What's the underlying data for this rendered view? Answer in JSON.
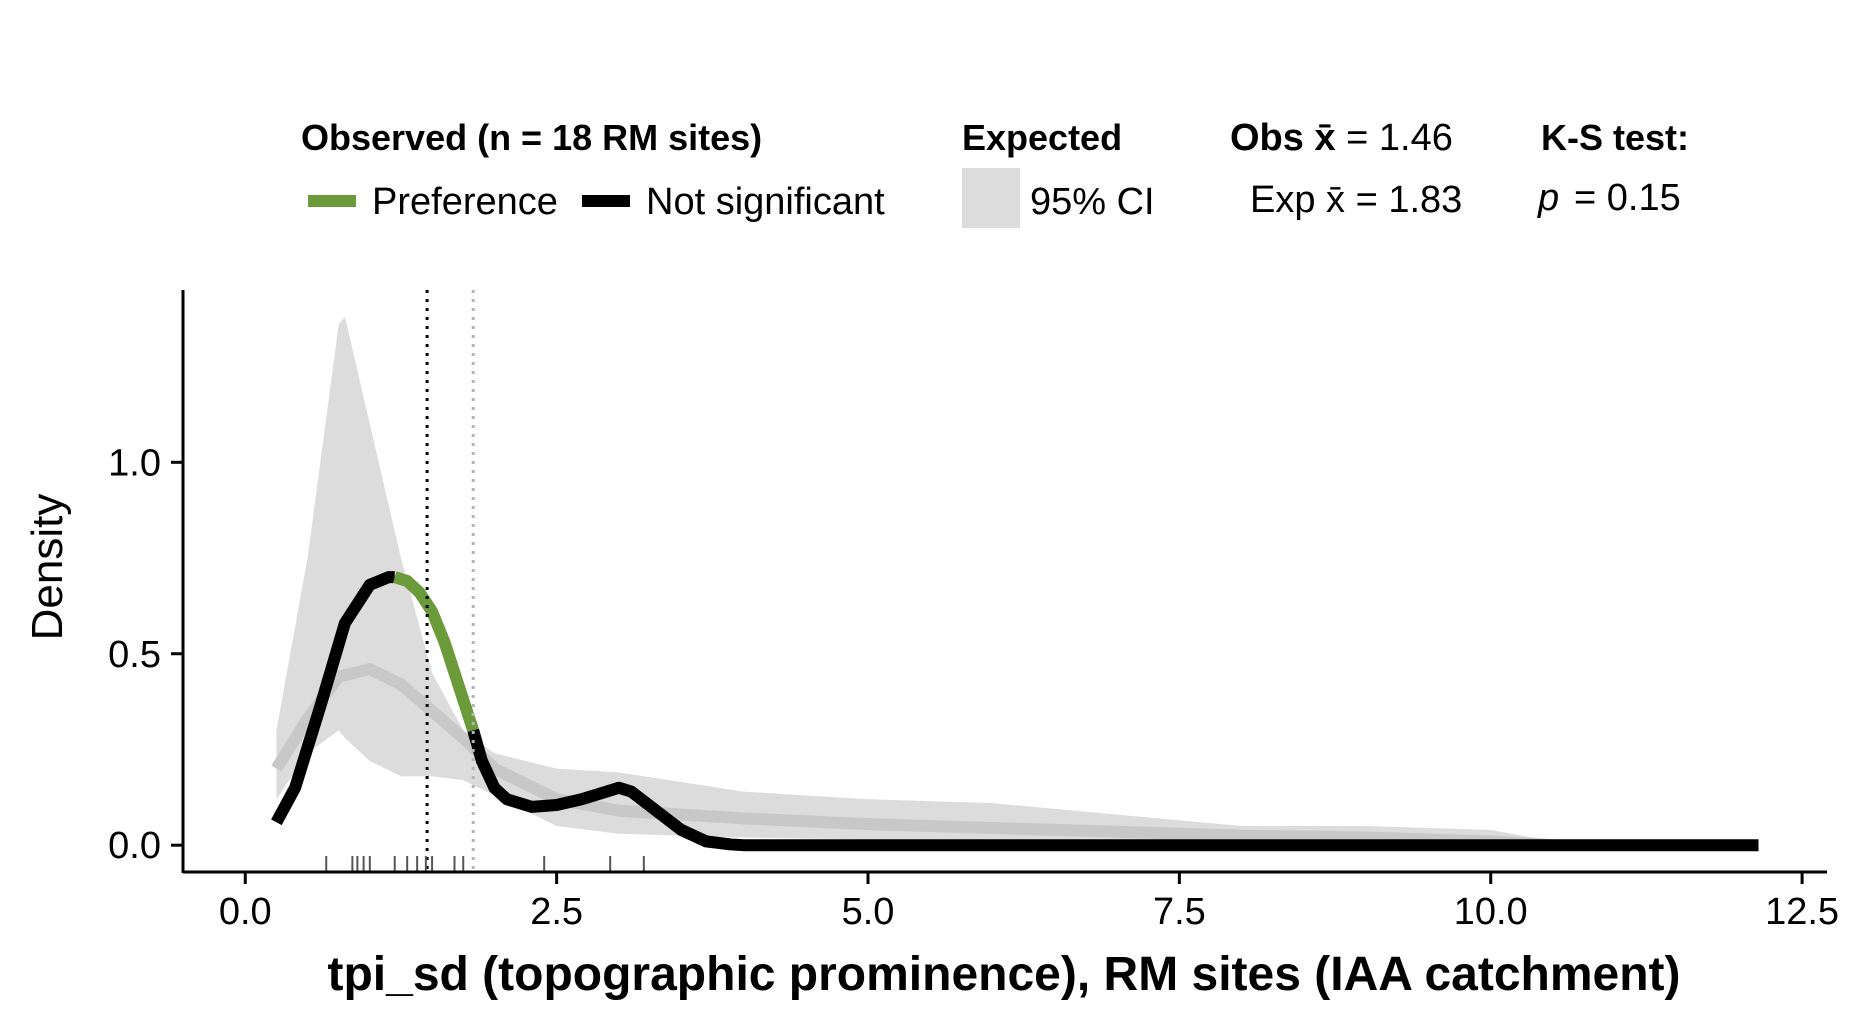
{
  "legend": {
    "observed_title": "Observed (n = 18 RM sites)",
    "preference_label": "Preference",
    "not_significant_label": "Not significant",
    "expected_title": "Expected",
    "ci_label": "95% CI",
    "obs_mean_label": "Obs x̄ = 1.46",
    "exp_mean_label": "Exp x̄ = 1.83",
    "ks_title": "K-S test:",
    "ks_p_symbol": "p",
    "ks_p_value": "= 0.15"
  },
  "colors": {
    "preference": "#6a9a3a",
    "not_significant": "#000000",
    "ci_band": "#dcdcdc",
    "expected_line": "#c8c8c8",
    "obs_mean_line": "#000000",
    "exp_mean_line": "#b4b4b4",
    "rug": "#555555"
  },
  "chart_data": {
    "type": "area",
    "xlabel": "tpi_sd (topographic prominence), RM sites (IAA catchment)",
    "ylabel": "Density",
    "xlim": [
      -0.5,
      12.7
    ],
    "ylim": [
      -0.07,
      1.45
    ],
    "x_ticks": [
      0.0,
      2.5,
      5.0,
      7.5,
      10.0,
      12.5
    ],
    "x_tick_labels": [
      "0.0",
      "2.5",
      "5.0",
      "7.5",
      "10.0",
      "12.5"
    ],
    "y_ticks": [
      0.0,
      0.5,
      1.0
    ],
    "y_tick_labels": [
      "0.0",
      "0.5",
      "1.0"
    ],
    "obs_mean": 1.46,
    "exp_mean": 1.83,
    "ci_band": {
      "x": [
        0.25,
        0.5,
        0.75,
        0.8,
        1.0,
        1.25,
        1.5,
        1.75,
        2.0,
        2.5,
        3.0,
        4.0,
        5.0,
        6.0,
        7.0,
        8.0,
        9.0,
        10.0,
        10.5
      ],
      "upper": [
        0.3,
        0.75,
        1.36,
        1.38,
        1.1,
        0.75,
        0.45,
        0.3,
        0.24,
        0.2,
        0.19,
        0.14,
        0.12,
        0.11,
        0.08,
        0.05,
        0.05,
        0.04,
        0.01
      ],
      "lower": [
        0.12,
        0.24,
        0.3,
        0.28,
        0.22,
        0.18,
        0.18,
        0.17,
        0.13,
        0.05,
        0.03,
        0.02,
        0.015,
        0.01,
        0.01,
        0.005,
        0.005,
        0.0,
        0.0
      ]
    },
    "series": [
      {
        "name": "Expected",
        "x": [
          0.25,
          0.5,
          0.75,
          1.0,
          1.25,
          1.5,
          1.75,
          2.0,
          2.5,
          3.0,
          3.5,
          4.0,
          5.0,
          6.0,
          7.0,
          8.0,
          9.0,
          10.0,
          10.5
        ],
        "y": [
          0.2,
          0.33,
          0.44,
          0.46,
          0.42,
          0.35,
          0.28,
          0.2,
          0.12,
          0.09,
          0.08,
          0.07,
          0.055,
          0.045,
          0.035,
          0.025,
          0.02,
          0.01,
          0.0
        ]
      },
      {
        "name": "Not significant",
        "x": [
          0.25,
          0.4,
          0.6,
          0.8,
          1.0,
          1.15,
          1.2
        ],
        "y": [
          0.06,
          0.15,
          0.36,
          0.58,
          0.68,
          0.7,
          0.7
        ]
      },
      {
        "name": "Preference",
        "x": [
          1.2,
          1.3,
          1.4,
          1.5,
          1.6,
          1.7,
          1.8,
          1.83
        ],
        "y": [
          0.7,
          0.69,
          0.66,
          0.61,
          0.53,
          0.43,
          0.33,
          0.3
        ]
      },
      {
        "name": "Not significant",
        "x": [
          1.83,
          1.9,
          2.0,
          2.1,
          2.3,
          2.5,
          2.7,
          2.9,
          3.0,
          3.1,
          3.3,
          3.5,
          3.7,
          3.9,
          4.0,
          6.0,
          8.0,
          10.0,
          12.15
        ],
        "y": [
          0.3,
          0.22,
          0.15,
          0.12,
          0.1,
          0.105,
          0.12,
          0.14,
          0.15,
          0.14,
          0.09,
          0.04,
          0.01,
          0.002,
          0.0,
          0.0,
          0.0,
          0.0,
          0.0
        ]
      }
    ],
    "rug": [
      0.65,
      0.86,
      0.9,
      0.95,
      1.0,
      1.2,
      1.3,
      1.38,
      1.45,
      1.5,
      1.68,
      1.75,
      2.4,
      2.93,
      3.2
    ]
  }
}
